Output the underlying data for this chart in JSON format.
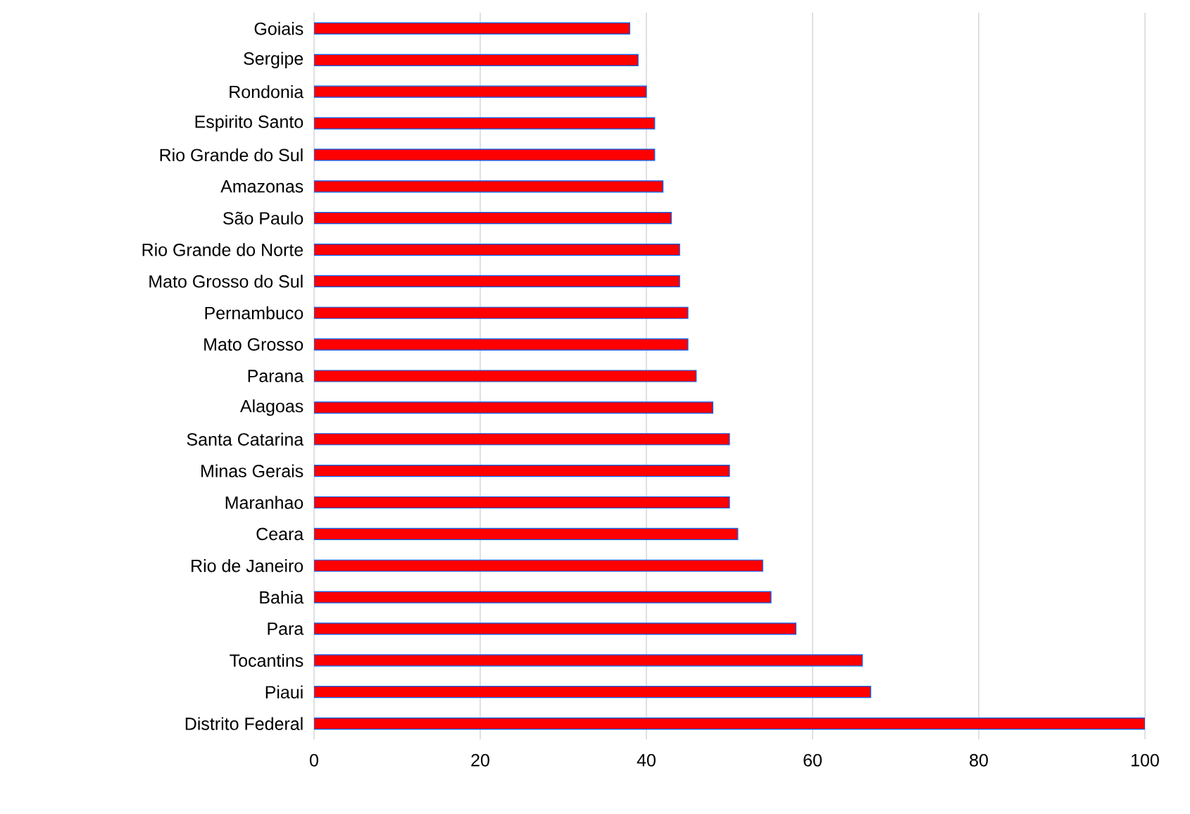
{
  "chart_data": {
    "type": "bar",
    "orientation": "horizontal",
    "categories": [
      "Goiais",
      "Sergipe",
      "Rondonia",
      "Espirito Santo",
      "Rio Grande do Sul",
      "Amazonas",
      "São Paulo",
      "Rio Grande do Norte",
      "Mato Grosso do Sul",
      "Pernambuco",
      "Mato Grosso",
      "Parana",
      "Alagoas",
      "Santa Catarina",
      "Minas Gerais",
      "Maranhao",
      "Ceara",
      "Rio de Janeiro",
      "Bahia",
      "Para",
      "Tocantins",
      "Piaui",
      "Distrito Federal"
    ],
    "values": [
      38,
      39,
      40,
      41,
      41,
      42,
      43,
      44,
      44,
      45,
      45,
      46,
      48,
      50,
      50,
      50,
      51,
      54,
      55,
      58,
      66,
      67,
      100
    ],
    "color": "#ff0000",
    "xlim": [
      0,
      100
    ],
    "xticks": [
      0,
      20,
      40,
      60,
      80,
      100
    ],
    "grid": "x"
  }
}
